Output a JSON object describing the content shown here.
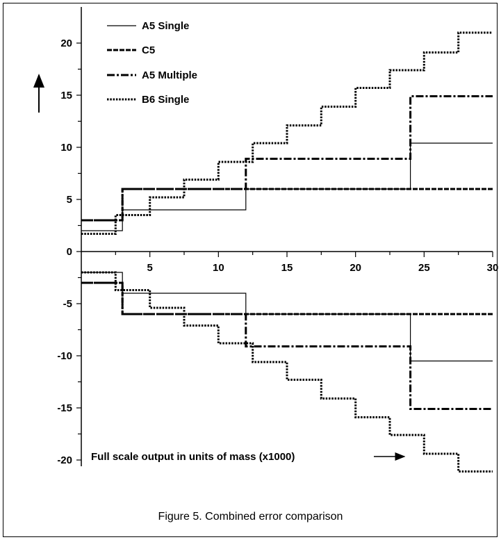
{
  "caption": "Figure 5.  Combined error comparison",
  "chart_data": {
    "type": "line",
    "title": "",
    "xlabel": "Full scale output in units of mass (x1000)",
    "ylabel": "",
    "xlim": [
      0,
      30
    ],
    "ylim": [
      -22,
      22
    ],
    "x_ticks": [
      5,
      10,
      15,
      20,
      25,
      30
    ],
    "y_ticks": [
      20,
      15,
      10,
      5,
      0,
      -5,
      -10,
      -15,
      -20
    ],
    "grid": false,
    "legend_position": "top-left",
    "series": [
      {
        "name": "A5 Single",
        "style": "solid-thin",
        "x": [
          0,
          3,
          3,
          12,
          12,
          24,
          24,
          30
        ],
        "y_upper": [
          2,
          2,
          4,
          4,
          6,
          6,
          10.4,
          10.4
        ],
        "y_lower": [
          -2,
          -2,
          -4,
          -4,
          -6,
          -6,
          -10.5,
          -10.5
        ]
      },
      {
        "name": "C5",
        "style": "dashed-thick",
        "x": [
          0,
          3,
          3,
          30
        ],
        "y_upper": [
          3,
          3,
          6,
          6
        ],
        "y_lower": [
          -3,
          -3,
          -6,
          -6
        ]
      },
      {
        "name": "A5 Multiple",
        "style": "dash-dot-thick",
        "x": [
          0,
          3,
          3,
          12,
          12,
          24,
          24,
          30
        ],
        "y_upper": [
          3,
          3,
          6,
          6,
          8.9,
          8.9,
          14.9,
          14.9
        ],
        "y_lower": [
          -3,
          -3,
          -6,
          -6,
          -9.1,
          -9.1,
          -15.1,
          -15.1
        ]
      },
      {
        "name": "B6 Single",
        "style": "dotted-thick",
        "x": [
          0,
          2.5,
          2.5,
          5,
          5,
          7.5,
          7.5,
          10,
          10,
          12.5,
          12.5,
          15,
          15,
          17.5,
          17.5,
          20,
          20,
          22.5,
          22.5,
          25,
          25,
          27.5,
          27.5,
          30
        ],
        "y_upper": [
          1.7,
          1.7,
          3.5,
          3.5,
          5.2,
          5.2,
          6.9,
          6.9,
          8.6,
          8.6,
          10.4,
          10.4,
          12.1,
          12.1,
          13.9,
          13.9,
          15.7,
          15.7,
          17.4,
          17.4,
          19.1,
          19.1,
          21,
          21
        ],
        "y_lower": [
          -2,
          -2,
          -3.7,
          -3.7,
          -5.4,
          -5.4,
          -7.1,
          -7.1,
          -8.8,
          -8.8,
          -10.6,
          -10.6,
          -12.3,
          -12.3,
          -14.1,
          -14.1,
          -15.9,
          -15.9,
          -17.6,
          -17.6,
          -19.4,
          -19.4,
          -21.1,
          -21.1
        ]
      }
    ]
  }
}
